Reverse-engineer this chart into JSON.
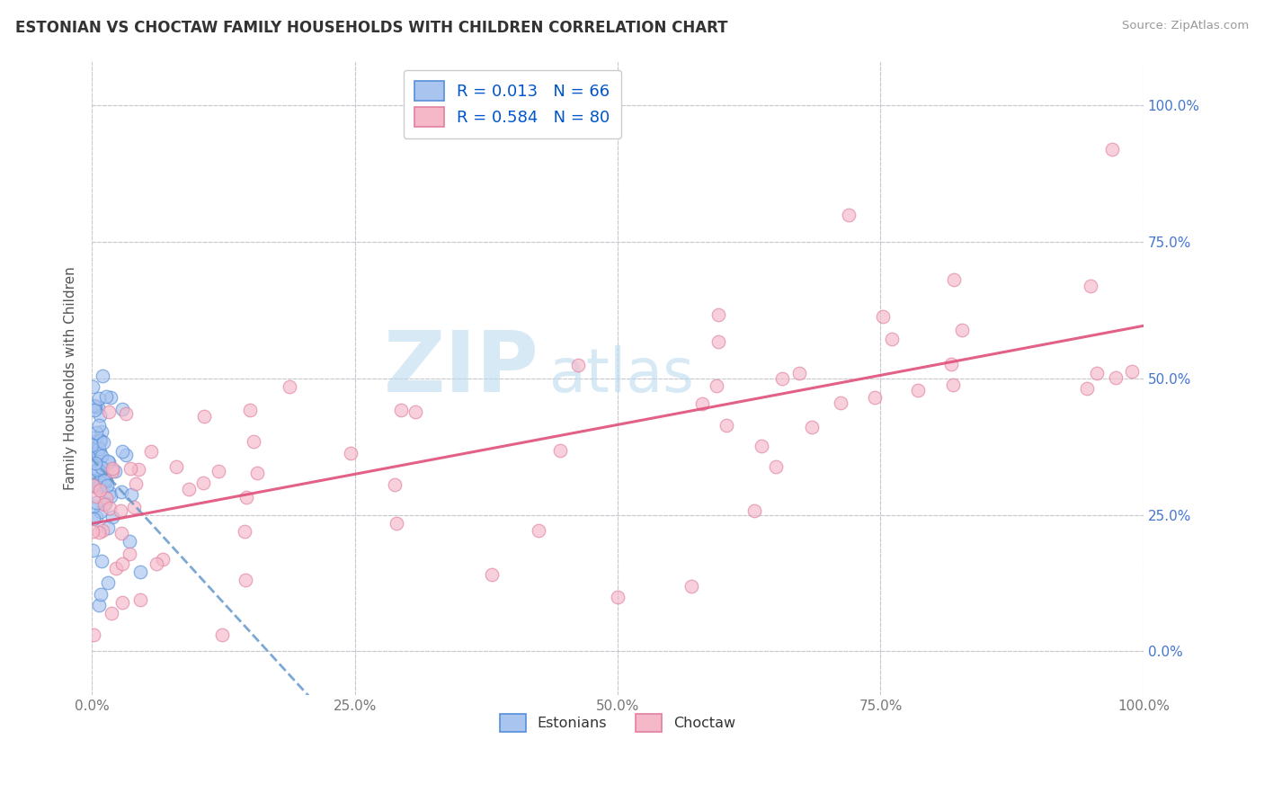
{
  "title": "ESTONIAN VS CHOCTAW FAMILY HOUSEHOLDS WITH CHILDREN CORRELATION CHART",
  "source": "Source: ZipAtlas.com",
  "ylabel": "Family Households with Children",
  "xlim": [
    0.0,
    1.0
  ],
  "ylim": [
    -0.08,
    1.08
  ],
  "xticks": [
    0.0,
    0.25,
    0.5,
    0.75,
    1.0
  ],
  "xticklabels": [
    "0.0%",
    "25.0%",
    "50.0%",
    "75.0%",
    "100.0%"
  ],
  "yticks": [
    0.0,
    0.25,
    0.5,
    0.75,
    1.0
  ],
  "yticklabels": [
    "0.0%",
    "25.0%",
    "50.0%",
    "75.0%",
    "100.0%"
  ],
  "estonian_color": "#aac4f0",
  "estonian_edge": "#5590d8",
  "choctaw_color": "#f5b8c8",
  "choctaw_edge": "#e080a0",
  "line_estonian": "#6699cc",
  "line_choctaw": "#e0507a",
  "R_estonian": 0.013,
  "N_estonian": 66,
  "R_choctaw": 0.584,
  "N_choctaw": 80,
  "legend_text_color": "#0055cc",
  "tick_color_right": "#4477cc",
  "background_color": "#ffffff",
  "grid_color": "#c8c8d0",
  "watermark_zip": "ZIP",
  "watermark_atlas": "atlas"
}
